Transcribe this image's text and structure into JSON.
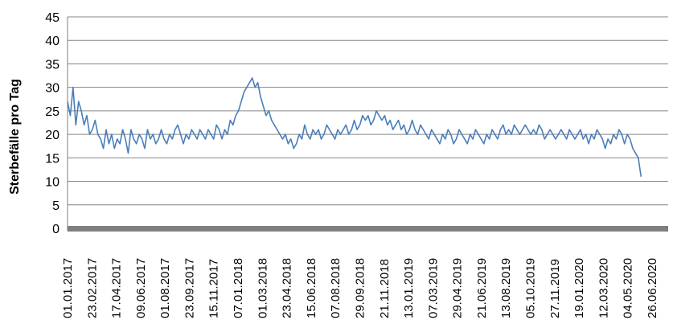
{
  "chart_data": {
    "type": "line",
    "title": "",
    "xlabel": "",
    "ylabel": "Sterbefälle pro Tag",
    "ylim": [
      0,
      45
    ],
    "yticks": [
      0,
      5,
      10,
      15,
      20,
      25,
      30,
      35,
      40,
      45
    ],
    "xlim": [
      "2017-01-01",
      "2020-07-31"
    ],
    "x_tick_labels": [
      "01.01.2017",
      "23.02.2017",
      "17.04.2017",
      "09.06.2017",
      "01.08.2017",
      "23.09.2017",
      "15.11.2017",
      "07.01.2018",
      "01.03.2018",
      "23.04.2018",
      "15.06.2018",
      "07.08.2018",
      "29.09.2018",
      "21.11.2018",
      "13.01.2019",
      "07.03.2019",
      "29.04.2019",
      "21.06.2019",
      "13.08.2019",
      "05.10.2019",
      "27.11.2019",
      "19.01.2020",
      "12.03.2020",
      "04.05.2020",
      "26.06.2020"
    ],
    "grid": "horizontal",
    "colors": {
      "series": "#4a7ebb",
      "grid": "#868686",
      "axis": "#7f7f7f"
    },
    "series": [
      {
        "name": "",
        "x_start": "2017-01-01",
        "x_step": "6 days",
        "values": [
          27,
          24,
          30,
          22,
          27,
          25,
          22,
          24,
          20,
          21,
          23,
          20,
          19,
          17,
          21,
          18,
          20,
          17,
          19,
          18,
          21,
          19,
          16,
          21,
          19,
          18,
          20,
          19,
          17,
          21,
          19,
          20,
          18,
          19,
          21,
          19,
          18,
          20,
          19,
          21,
          22,
          20,
          18,
          20,
          19,
          21,
          20,
          19,
          21,
          20,
          19,
          21,
          20,
          19,
          22,
          21,
          19,
          21,
          20,
          23,
          22,
          24,
          25,
          27,
          29,
          30,
          31,
          32,
          30,
          31,
          28,
          26,
          24,
          25,
          23,
          22,
          21,
          20,
          19,
          20,
          18,
          19,
          17,
          18,
          20,
          19,
          22,
          20,
          19,
          21,
          20,
          21,
          19,
          20,
          22,
          21,
          20,
          19,
          21,
          20,
          21,
          22,
          20,
          21,
          23,
          21,
          22,
          24,
          23,
          24,
          22,
          23,
          25,
          24,
          23,
          24,
          22,
          23,
          21,
          22,
          23,
          21,
          22,
          20,
          21,
          23,
          21,
          20,
          22,
          21,
          20,
          19,
          21,
          20,
          19,
          18,
          20,
          19,
          21,
          20,
          18,
          19,
          21,
          20,
          19,
          18,
          20,
          19,
          21,
          20,
          19,
          18,
          20,
          19,
          21,
          20,
          19,
          21,
          22,
          20,
          21,
          20,
          22,
          21,
          20,
          21,
          22,
          21,
          20,
          21,
          20,
          22,
          21,
          19,
          20,
          21,
          20,
          19,
          20,
          21,
          20,
          19,
          21,
          20,
          19,
          20,
          21,
          19,
          20,
          18,
          20,
          19,
          21,
          20,
          19,
          17,
          19,
          18,
          20,
          19,
          21,
          20,
          18,
          20,
          19,
          17,
          16,
          15,
          11
        ]
      }
    ]
  }
}
